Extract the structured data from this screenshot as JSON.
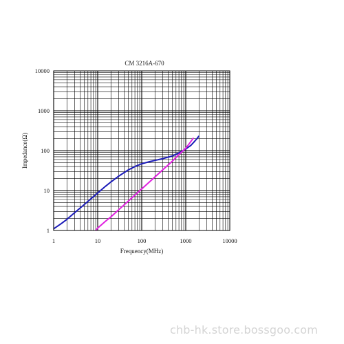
{
  "watermark": "chb-hk.store.bossgoo.com",
  "chart_data": {
    "type": "line",
    "title": "CM 3216A-670",
    "xlabel": "Frequency(MHz)",
    "ylabel": "Impedance(Ω)",
    "x_scale": "log",
    "y_scale": "log",
    "xlim": [
      1,
      10000
    ],
    "ylim": [
      1,
      10000
    ],
    "x_ticks": [
      "1",
      "10",
      "100",
      "1000",
      "10000"
    ],
    "y_ticks": [
      "1",
      "10",
      "100",
      "1000",
      "10000"
    ],
    "grid": true,
    "legend": "none",
    "series": [
      {
        "color": "#1a1ab8",
        "x": [
          1,
          1.5,
          2,
          3,
          5,
          7,
          10,
          15,
          20,
          30,
          50,
          70,
          100,
          150,
          200,
          300,
          500,
          700,
          1000,
          1300,
          1500,
          1800,
          2000
        ],
        "y": [
          1.1,
          1.5,
          1.9,
          2.8,
          4.5,
          6.2,
          8.7,
          12.8,
          16.5,
          23,
          33,
          40,
          47,
          53,
          57,
          63,
          74,
          88,
          110,
          135,
          160,
          200,
          235
        ]
      },
      {
        "color": "#e020e0",
        "x": [
          9,
          10,
          15,
          20,
          30,
          50,
          70,
          100,
          150,
          200,
          300,
          500,
          700,
          1000,
          1200,
          1500
        ],
        "y": [
          1,
          1.15,
          1.7,
          2.2,
          3.3,
          5.5,
          7.7,
          11,
          16.5,
          22,
          33,
          55,
          80,
          115,
          150,
          210
        ]
      }
    ]
  }
}
